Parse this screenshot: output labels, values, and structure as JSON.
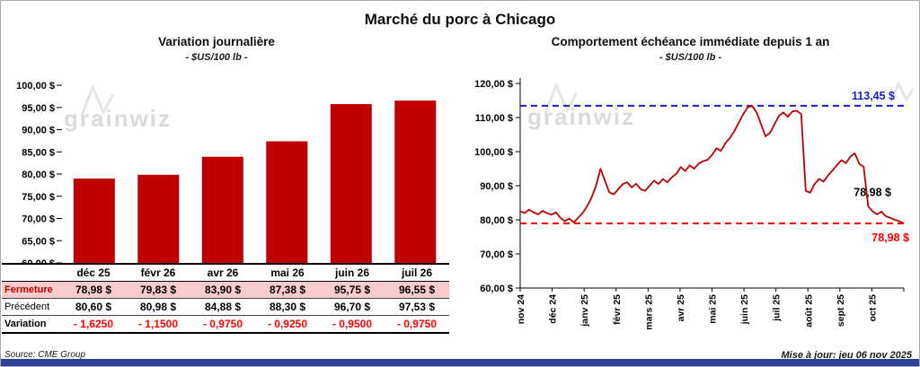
{
  "page": {
    "title": "Marché du porc à Chicago",
    "source": "Source: CME Group",
    "updated": "Mise à jour: jeu 06 nov 2025",
    "watermark": "grainwiz"
  },
  "colors": {
    "bar_red": "#C00000",
    "line_red": "#C00000",
    "dashed_red": "#FF0000",
    "dashed_blue": "#1C1CCC",
    "pink_row": "#F8CBCC",
    "bottom_bar": "#2D4396",
    "watermark_gray": "#DBDBDB"
  },
  "table": {
    "row_labels": [
      "Fermeture",
      "Précédent",
      "Variation"
    ],
    "columns": [
      "déc 25",
      "févr 26",
      "avr 26",
      "mai 26",
      "juin 26",
      "juil 26"
    ],
    "fermeture": [
      "78,98  $",
      "79,83  $",
      "83,90  $",
      "87,38  $",
      "95,75  $",
      "96,55  $"
    ],
    "precedent": [
      "80,60  $",
      "80,98  $",
      "84,88  $",
      "88,30  $",
      "96,70  $",
      "97,53  $"
    ],
    "variation": [
      "- 1,6250",
      "- 1,1500",
      "- 0,9750",
      "- 0,9250",
      "- 0,9500",
      "- 0,9750"
    ]
  },
  "chart_data": [
    {
      "type": "bar",
      "title": "Variation journalière",
      "subtitle": "- $US/100 lb -",
      "categories": [
        "déc 25",
        "févr 26",
        "avr 26",
        "mai 26",
        "juin 26",
        "juil 26"
      ],
      "values": [
        78.98,
        79.83,
        83.9,
        87.38,
        95.75,
        96.55
      ],
      "ylim": [
        60,
        100
      ],
      "yticks": [
        60,
        65,
        70,
        75,
        80,
        85,
        90,
        95,
        100
      ],
      "ytick_labels": [
        "60,00 $",
        "65,00 $",
        "70,00 $",
        "75,00 $",
        "80,00 $",
        "85,00 $",
        "90,00 $",
        "95,00 $",
        "100,00 $"
      ],
      "bar_color": "#C00000",
      "grid": false,
      "legend": "none"
    },
    {
      "type": "line",
      "title": "Comportement échéance immédiate depuis 1 an",
      "subtitle": "- $US/100 lb -",
      "x_labels": [
        "nov 24",
        "déc 24",
        "janv 25",
        "févr 25",
        "mars 25",
        "avr 25",
        "mai 25",
        "juin 25",
        "juil 25",
        "août 25",
        "sept 25",
        "oct 25"
      ],
      "values": [
        82.5,
        82.0,
        83.0,
        82.2,
        81.6,
        82.6,
        82.0,
        81.5,
        82.2,
        80.6,
        79.6,
        80.4,
        79.2,
        80.6,
        82.0,
        84.0,
        86.5,
        90.0,
        95.0,
        91.5,
        88.0,
        87.5,
        89.0,
        90.5,
        91.0,
        89.5,
        90.6,
        89.0,
        88.5,
        90.0,
        91.5,
        90.5,
        92.0,
        91.0,
        92.5,
        93.5,
        95.5,
        94.3,
        96.0,
        95.0,
        96.5,
        97.2,
        97.6,
        99.0,
        101.0,
        100.2,
        102.5,
        104.0,
        106.0,
        108.5,
        111.0,
        113.0,
        113.4,
        111.5,
        108.0,
        104.5,
        105.5,
        108.0,
        110.5,
        111.5,
        110.2,
        111.8,
        112.0,
        111.0,
        88.5,
        88.0,
        90.5,
        92.0,
        91.2,
        93.0,
        94.5,
        96.0,
        97.5,
        96.6,
        98.5,
        99.5,
        96.5,
        95.5,
        84.0,
        82.5,
        81.6,
        82.4,
        81.0,
        80.6,
        80.0,
        79.6,
        78.98
      ],
      "ylim": [
        60,
        120
      ],
      "yticks": [
        60,
        70,
        80,
        90,
        100,
        110,
        120
      ],
      "ytick_labels": [
        "60,00 $",
        "70,00 $",
        "80,00 $",
        "90,00 $",
        "100,00 $",
        "110,00 $",
        "120,00 $"
      ],
      "line_color": "#C00000",
      "grid": false,
      "legend": "none",
      "reference_lines": [
        {
          "value": 113.45,
          "label": "113,45 $",
          "color": "#1C1CCC",
          "style": "dashed"
        },
        {
          "value": 78.98,
          "label": "78,98 $",
          "color": "#FF0000",
          "style": "dashed"
        }
      ],
      "point_label": {
        "text": "78,98 $",
        "value": 78.98,
        "color": "#000000"
      }
    }
  ]
}
